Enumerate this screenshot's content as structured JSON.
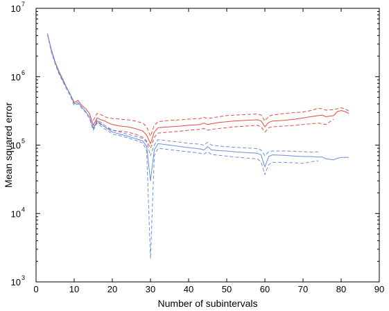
{
  "chart_data": {
    "type": "line",
    "title": "",
    "xlabel": "Number of subintervals",
    "ylabel": "Mean squared error",
    "xlim": [
      0,
      90
    ],
    "ylim": [
      1000,
      10000000
    ],
    "y_scale": "log",
    "grid": false,
    "legend": "none",
    "x_ticks": [
      0,
      10,
      20,
      30,
      40,
      50,
      60,
      70,
      80,
      90
    ],
    "y_ticks": [
      {
        "value": 1000,
        "base": "10",
        "exp": "3"
      },
      {
        "value": 10000,
        "base": "10",
        "exp": "4"
      },
      {
        "value": 100000,
        "base": "10",
        "exp": "5"
      },
      {
        "value": 1000000,
        "base": "10",
        "exp": "6"
      },
      {
        "value": 10000000,
        "base": "10",
        "exp": "7"
      }
    ],
    "series": [
      {
        "color": "#e8483a",
        "style": "solid",
        "x": [
          3,
          4,
          5,
          6,
          7,
          8,
          9,
          10,
          11,
          12,
          13,
          14,
          15,
          16,
          17,
          18,
          19,
          20,
          22,
          24,
          26,
          28,
          29,
          30,
          31,
          32,
          35,
          38,
          40,
          43,
          44,
          45,
          46,
          48,
          50,
          52,
          55,
          58,
          59,
          60,
          61,
          62,
          65,
          68,
          70,
          72,
          74,
          75,
          76,
          78,
          79,
          80,
          81,
          82
        ],
        "y": [
          4200000,
          2500000,
          1650000,
          1200000,
          920000,
          700000,
          550000,
          420000,
          450000,
          380000,
          340000,
          290000,
          195000,
          250000,
          235000,
          225000,
          210000,
          200000,
          190000,
          185000,
          175000,
          160000,
          140000,
          105000,
          155000,
          180000,
          185000,
          190000,
          195000,
          200000,
          210000,
          200000,
          205000,
          215000,
          220000,
          225000,
          230000,
          235000,
          225000,
          185000,
          215000,
          225000,
          230000,
          240000,
          250000,
          260000,
          270000,
          275000,
          260000,
          270000,
          310000,
          320000,
          310000,
          290000
        ]
      },
      {
        "color": "#e8483a",
        "style": "dashed",
        "x": [
          15,
          16,
          17,
          18,
          19,
          20,
          22,
          24,
          26,
          28,
          29,
          30,
          31,
          32,
          35,
          38,
          40,
          43,
          44,
          45,
          46,
          48,
          50,
          52,
          55,
          58,
          59,
          60,
          61,
          62,
          65,
          68,
          70,
          72,
          74,
          75,
          76,
          78,
          79,
          80,
          81,
          82
        ],
        "y": [
          230000,
          290000,
          280000,
          260000,
          250000,
          245000,
          240000,
          235000,
          225000,
          210000,
          185000,
          135000,
          195000,
          220000,
          230000,
          235000,
          240000,
          245000,
          255000,
          245000,
          250000,
          260000,
          270000,
          275000,
          280000,
          285000,
          275000,
          225000,
          265000,
          275000,
          290000,
          300000,
          305000,
          320000,
          345000,
          340000,
          325000,
          330000,
          340000,
          350000,
          340000,
          315000
        ]
      },
      {
        "color": "#e8483a",
        "style": "dashed",
        "x": [
          15,
          16,
          17,
          18,
          19,
          20,
          22,
          24,
          26,
          28,
          29,
          30,
          31,
          32,
          35,
          38,
          40,
          43,
          44,
          45,
          46,
          48,
          50,
          52,
          55,
          58,
          59,
          60,
          61,
          62,
          65,
          68,
          70,
          72,
          74,
          75,
          76,
          78
        ],
        "y": [
          165000,
          220000,
          200000,
          185000,
          175000,
          165000,
          160000,
          155000,
          145000,
          130000,
          115000,
          90000,
          130000,
          150000,
          155000,
          160000,
          165000,
          170000,
          175000,
          165000,
          170000,
          175000,
          180000,
          185000,
          190000,
          195000,
          185000,
          155000,
          180000,
          185000,
          190000,
          195000,
          200000,
          205000,
          210000,
          205000,
          200000,
          240000
        ]
      },
      {
        "color": "#6a8ed8",
        "style": "solid",
        "x": [
          3,
          4,
          5,
          6,
          7,
          8,
          9,
          10,
          11,
          12,
          13,
          14,
          15,
          16,
          17,
          18,
          19,
          20,
          22,
          24,
          26,
          28,
          29,
          30,
          31,
          32,
          35,
          38,
          40,
          43,
          44,
          45,
          46,
          48,
          50,
          52,
          55,
          58,
          59,
          60,
          61,
          62,
          65,
          68,
          70,
          72,
          74,
          75,
          76,
          78,
          79,
          80,
          81,
          82
        ],
        "y": [
          4300000,
          2400000,
          1600000,
          1150000,
          880000,
          690000,
          550000,
          400000,
          420000,
          360000,
          310000,
          260000,
          175000,
          225000,
          205000,
          185000,
          170000,
          155000,
          145000,
          135000,
          125000,
          115000,
          95000,
          30000,
          85000,
          105000,
          100000,
          95000,
          92000,
          88000,
          85000,
          95000,
          85000,
          83000,
          82000,
          80000,
          78000,
          76000,
          72000,
          48000,
          68000,
          72000,
          71000,
          69000,
          68000,
          68000,
          67000,
          67000,
          63000,
          61000,
          64000,
          66000,
          66000,
          66000
        ]
      },
      {
        "color": "#6a8ed8",
        "style": "dashed",
        "x": [
          3,
          4,
          5,
          6,
          7,
          8,
          9,
          10,
          11,
          12,
          13,
          14,
          15,
          16,
          17,
          18,
          19,
          20,
          22,
          24,
          26,
          28,
          29,
          30,
          31,
          32,
          35,
          38,
          40,
          43,
          44,
          45,
          46,
          48,
          50,
          52,
          55,
          58,
          59,
          60,
          61,
          62,
          65,
          68,
          70,
          72,
          74
        ],
        "y": [
          4100000,
          2300000,
          1550000,
          1100000,
          850000,
          660000,
          520000,
          380000,
          400000,
          345000,
          300000,
          245000,
          165000,
          210000,
          190000,
          172000,
          160000,
          145000,
          137000,
          128000,
          118000,
          108000,
          82000,
          2200,
          70000,
          90000,
          86000,
          82000,
          80000,
          76000,
          74000,
          80000,
          73000,
          71000,
          69000,
          67000,
          65000,
          63000,
          57000,
          37000,
          52000,
          56000,
          56000,
          55000,
          54000,
          57000,
          59000
        ]
      },
      {
        "color": "#6a8ed8",
        "style": "dashed",
        "x": [
          15,
          16,
          17,
          18,
          19,
          20,
          22,
          24,
          26,
          28,
          29,
          30,
          31,
          32,
          35,
          38,
          40,
          43,
          44,
          45,
          46,
          48,
          50,
          52,
          55,
          58,
          59,
          60,
          61,
          62,
          65,
          68,
          70,
          72,
          74
        ],
        "y": [
          180000,
          235000,
          215000,
          195000,
          180000,
          165000,
          155000,
          145000,
          135000,
          125000,
          110000,
          70000,
          100000,
          120000,
          115000,
          110000,
          106000,
          103000,
          100000,
          110000,
          100000,
          97000,
          95000,
          93000,
          91000,
          89000,
          85000,
          70000,
          80000,
          82000,
          82000,
          81000,
          80000,
          79000,
          80000
        ]
      }
    ]
  }
}
